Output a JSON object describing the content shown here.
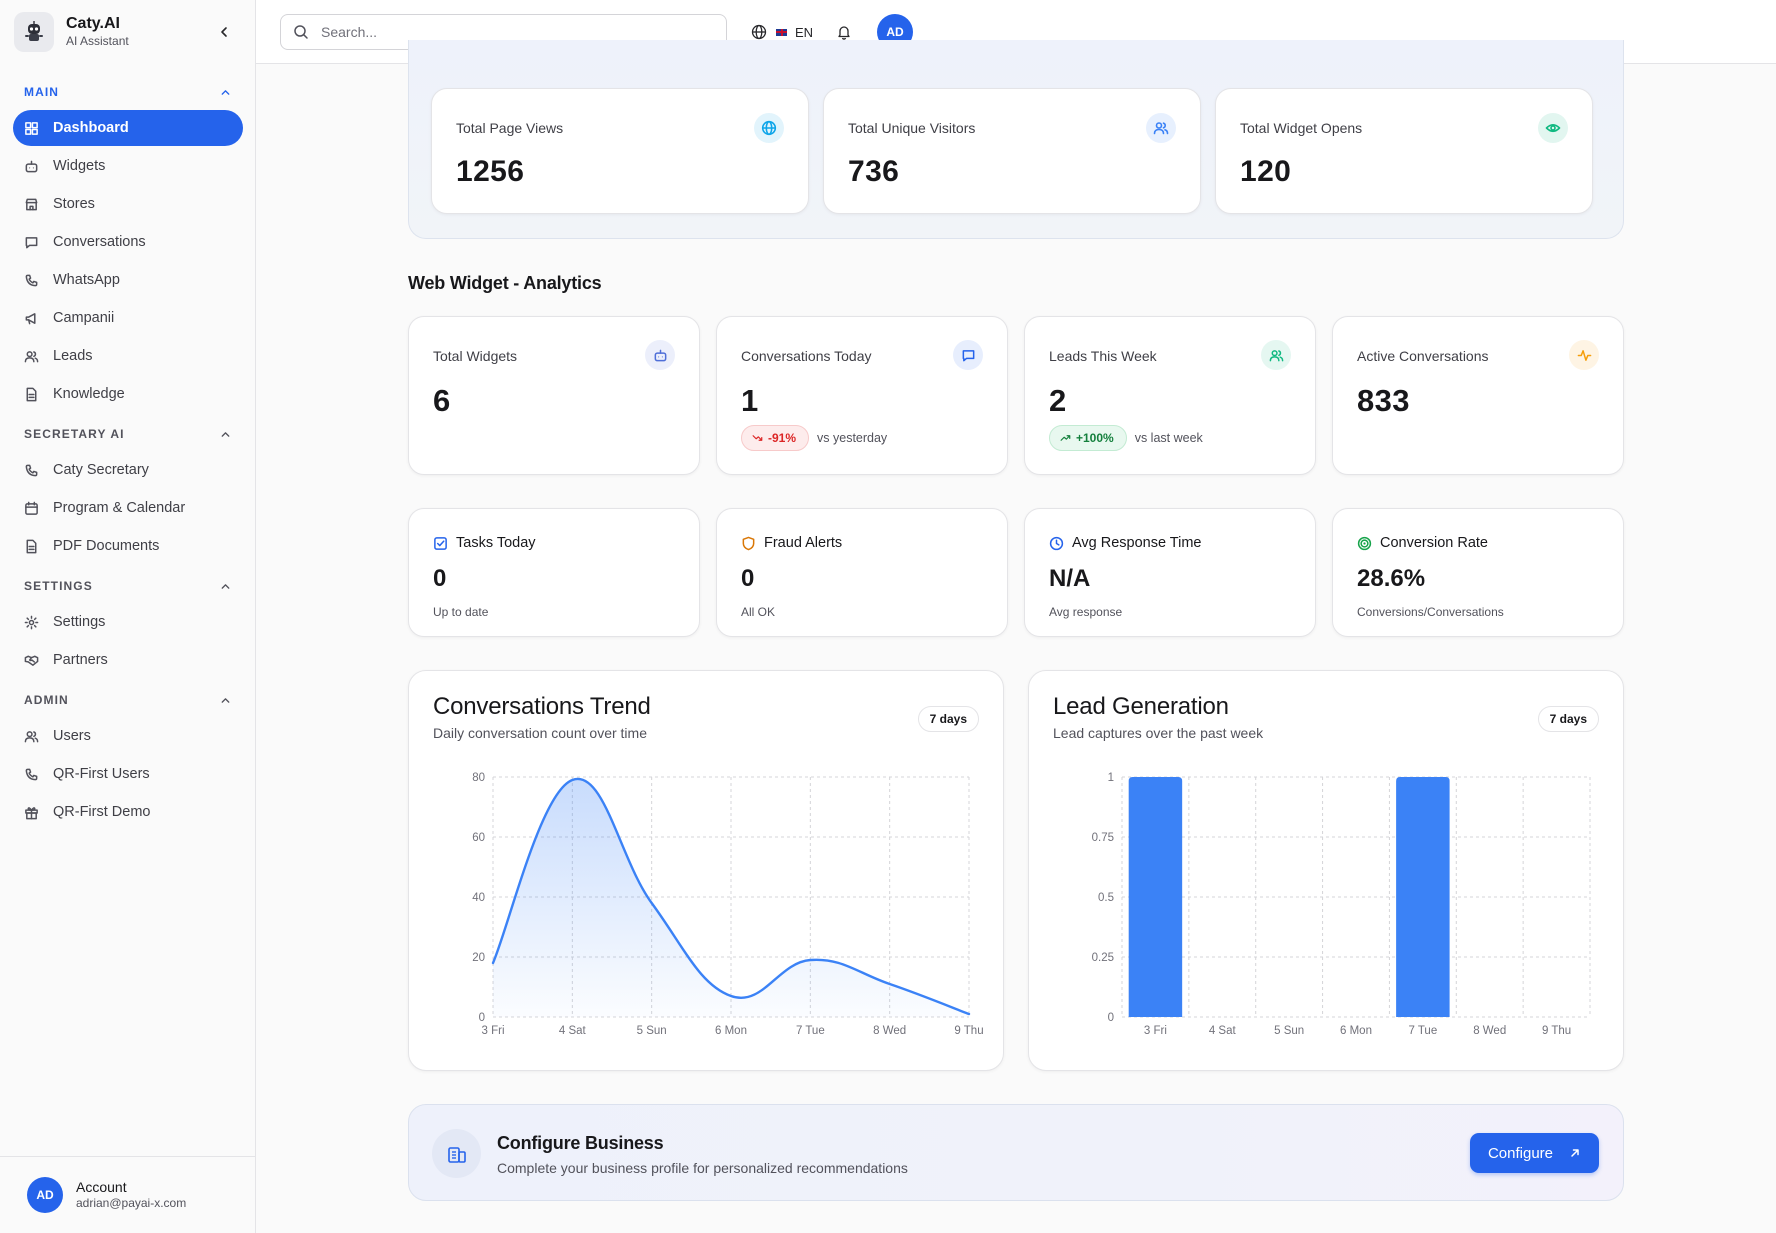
{
  "brand": {
    "name": "Caty.AI",
    "subtitle": "AI Assistant"
  },
  "sidebar": {
    "sections": [
      {
        "title": "MAIN",
        "items": [
          {
            "label": "Dashboard",
            "icon": "dashboard-icon",
            "active": true
          },
          {
            "label": "Widgets",
            "icon": "bot-icon"
          },
          {
            "label": "Stores",
            "icon": "store-icon"
          },
          {
            "label": "Conversations",
            "icon": "message-icon"
          },
          {
            "label": "WhatsApp",
            "icon": "phone-icon"
          },
          {
            "label": "Campanii",
            "icon": "megaphone-icon"
          },
          {
            "label": "Leads",
            "icon": "users-icon"
          },
          {
            "label": "Knowledge",
            "icon": "document-icon"
          }
        ]
      },
      {
        "title": "SECRETARY AI",
        "items": [
          {
            "label": "Caty Secretary",
            "icon": "phone-icon"
          },
          {
            "label": "Program & Calendar",
            "icon": "calendar-icon"
          },
          {
            "label": "PDF Documents",
            "icon": "document-icon"
          }
        ]
      },
      {
        "title": "SETTINGS",
        "items": [
          {
            "label": "Settings",
            "icon": "gear-icon"
          },
          {
            "label": "Partners",
            "icon": "handshake-icon"
          }
        ]
      },
      {
        "title": "ADMIN",
        "items": [
          {
            "label": "Users",
            "icon": "users-icon"
          },
          {
            "label": "QR-First Users",
            "icon": "phone-icon"
          },
          {
            "label": "QR-First Demo",
            "icon": "gift-icon"
          }
        ]
      }
    ],
    "account": {
      "initials": "AD",
      "name": "Account",
      "email": "adrian@payai-x.com"
    }
  },
  "topbar": {
    "search_placeholder": "Search...",
    "language": "EN",
    "avatar_initials": "AD"
  },
  "overview": [
    {
      "label": "Total Page Views",
      "value": "1256",
      "icon": "globe-icon",
      "color": "#0ea5e9"
    },
    {
      "label": "Total Unique Visitors",
      "value": "736",
      "icon": "users-icon",
      "color": "#3b82f6"
    },
    {
      "label": "Total Widget Opens",
      "value": "120",
      "icon": "eye-icon",
      "color": "#10b981"
    }
  ],
  "analytics": {
    "title": "Web Widget - Analytics",
    "stats": [
      {
        "label": "Total Widgets",
        "value": "6",
        "icon": "bot-icon"
      },
      {
        "label": "Conversations Today",
        "value": "1",
        "icon": "message-icon",
        "delta": "-91%",
        "delta_text": "vs yesterday"
      },
      {
        "label": "Leads This Week",
        "value": "2",
        "icon": "users-icon",
        "delta": "+100%",
        "delta_text": "vs last week"
      },
      {
        "label": "Active Conversations",
        "value": "833",
        "icon": "activity-icon"
      }
    ],
    "mini": [
      {
        "label": "Tasks Today",
        "value": "0",
        "sub": "Up to date",
        "icon": "check-square-icon"
      },
      {
        "label": "Fraud Alerts",
        "value": "0",
        "sub": "All OK",
        "icon": "shield-icon"
      },
      {
        "label": "Avg Response Time",
        "value": "N/A",
        "sub": "Avg response",
        "icon": "clock-icon"
      },
      {
        "label": "Conversion Rate",
        "value": "28.6%",
        "sub": "Conversions/Conversations",
        "icon": "target-icon"
      }
    ]
  },
  "chart_data": [
    {
      "type": "area",
      "title": "Conversations Trend",
      "subtitle": "Daily conversation count over time",
      "range_label": "7 days",
      "categories": [
        "3 Fri",
        "4 Sat",
        "5 Sun",
        "6 Mon",
        "7 Tue",
        "8 Wed",
        "9 Thu"
      ],
      "values": [
        18,
        79,
        38,
        7,
        19,
        11,
        1
      ],
      "ylim": [
        0,
        80
      ],
      "yticks": [
        "0",
        "20",
        "40",
        "60",
        "80"
      ],
      "grid": true,
      "color": "#3b82f6"
    },
    {
      "type": "bar",
      "title": "Lead Generation",
      "subtitle": "Lead captures over the past week",
      "range_label": "7 days",
      "categories": [
        "3 Fri",
        "4 Sat",
        "5 Sun",
        "6 Mon",
        "7 Tue",
        "8 Wed",
        "9 Thu"
      ],
      "values": [
        1,
        0,
        0,
        0,
        1,
        0,
        0
      ],
      "ylim": [
        0,
        1
      ],
      "yticks": [
        "0",
        "0.25",
        "0.5",
        "0.75",
        "1"
      ],
      "grid": true,
      "color": "#3b82f6"
    }
  ],
  "configure": {
    "title": "Configure Business",
    "subtitle": "Complete your business profile for personalized recommendations",
    "button": "Configure"
  }
}
